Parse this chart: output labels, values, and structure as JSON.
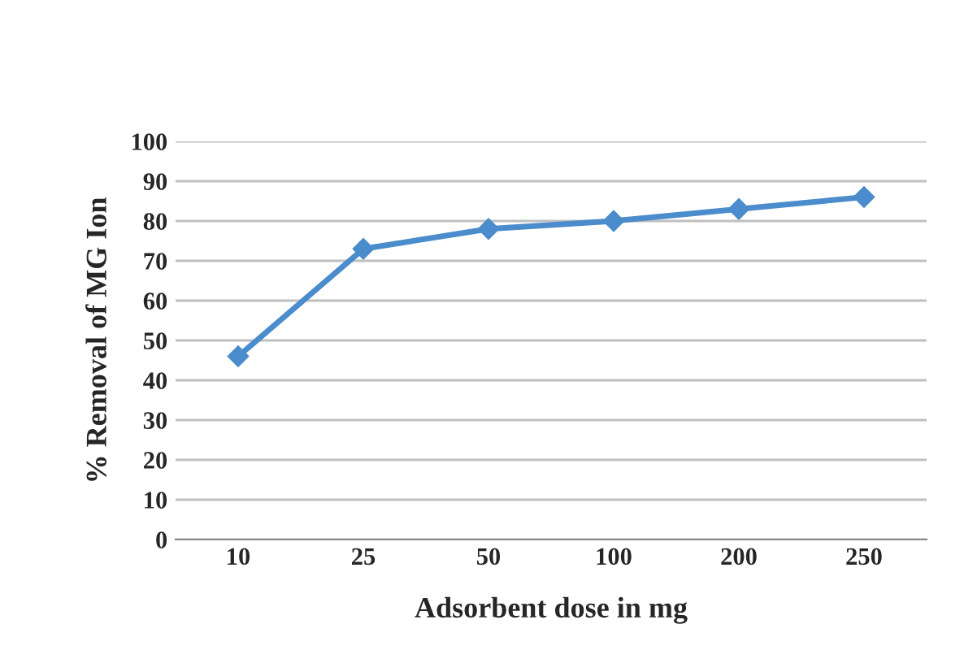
{
  "chart_data": {
    "type": "line",
    "xlabel": "Adsorbent dose in mg",
    "ylabel": "% Removal of MG Ion",
    "categories": [
      "10",
      "25",
      "50",
      "100",
      "200",
      "250"
    ],
    "series": [
      {
        "color": "#4a8ccc",
        "values": [
          46,
          73,
          78,
          80,
          83,
          86
        ]
      }
    ],
    "ylim": [
      0,
      100
    ],
    "yticks": [
      0,
      10,
      20,
      30,
      40,
      50,
      60,
      70,
      80,
      90,
      100
    ],
    "grid": "y",
    "marker": "diamond",
    "line_style": "solid"
  }
}
